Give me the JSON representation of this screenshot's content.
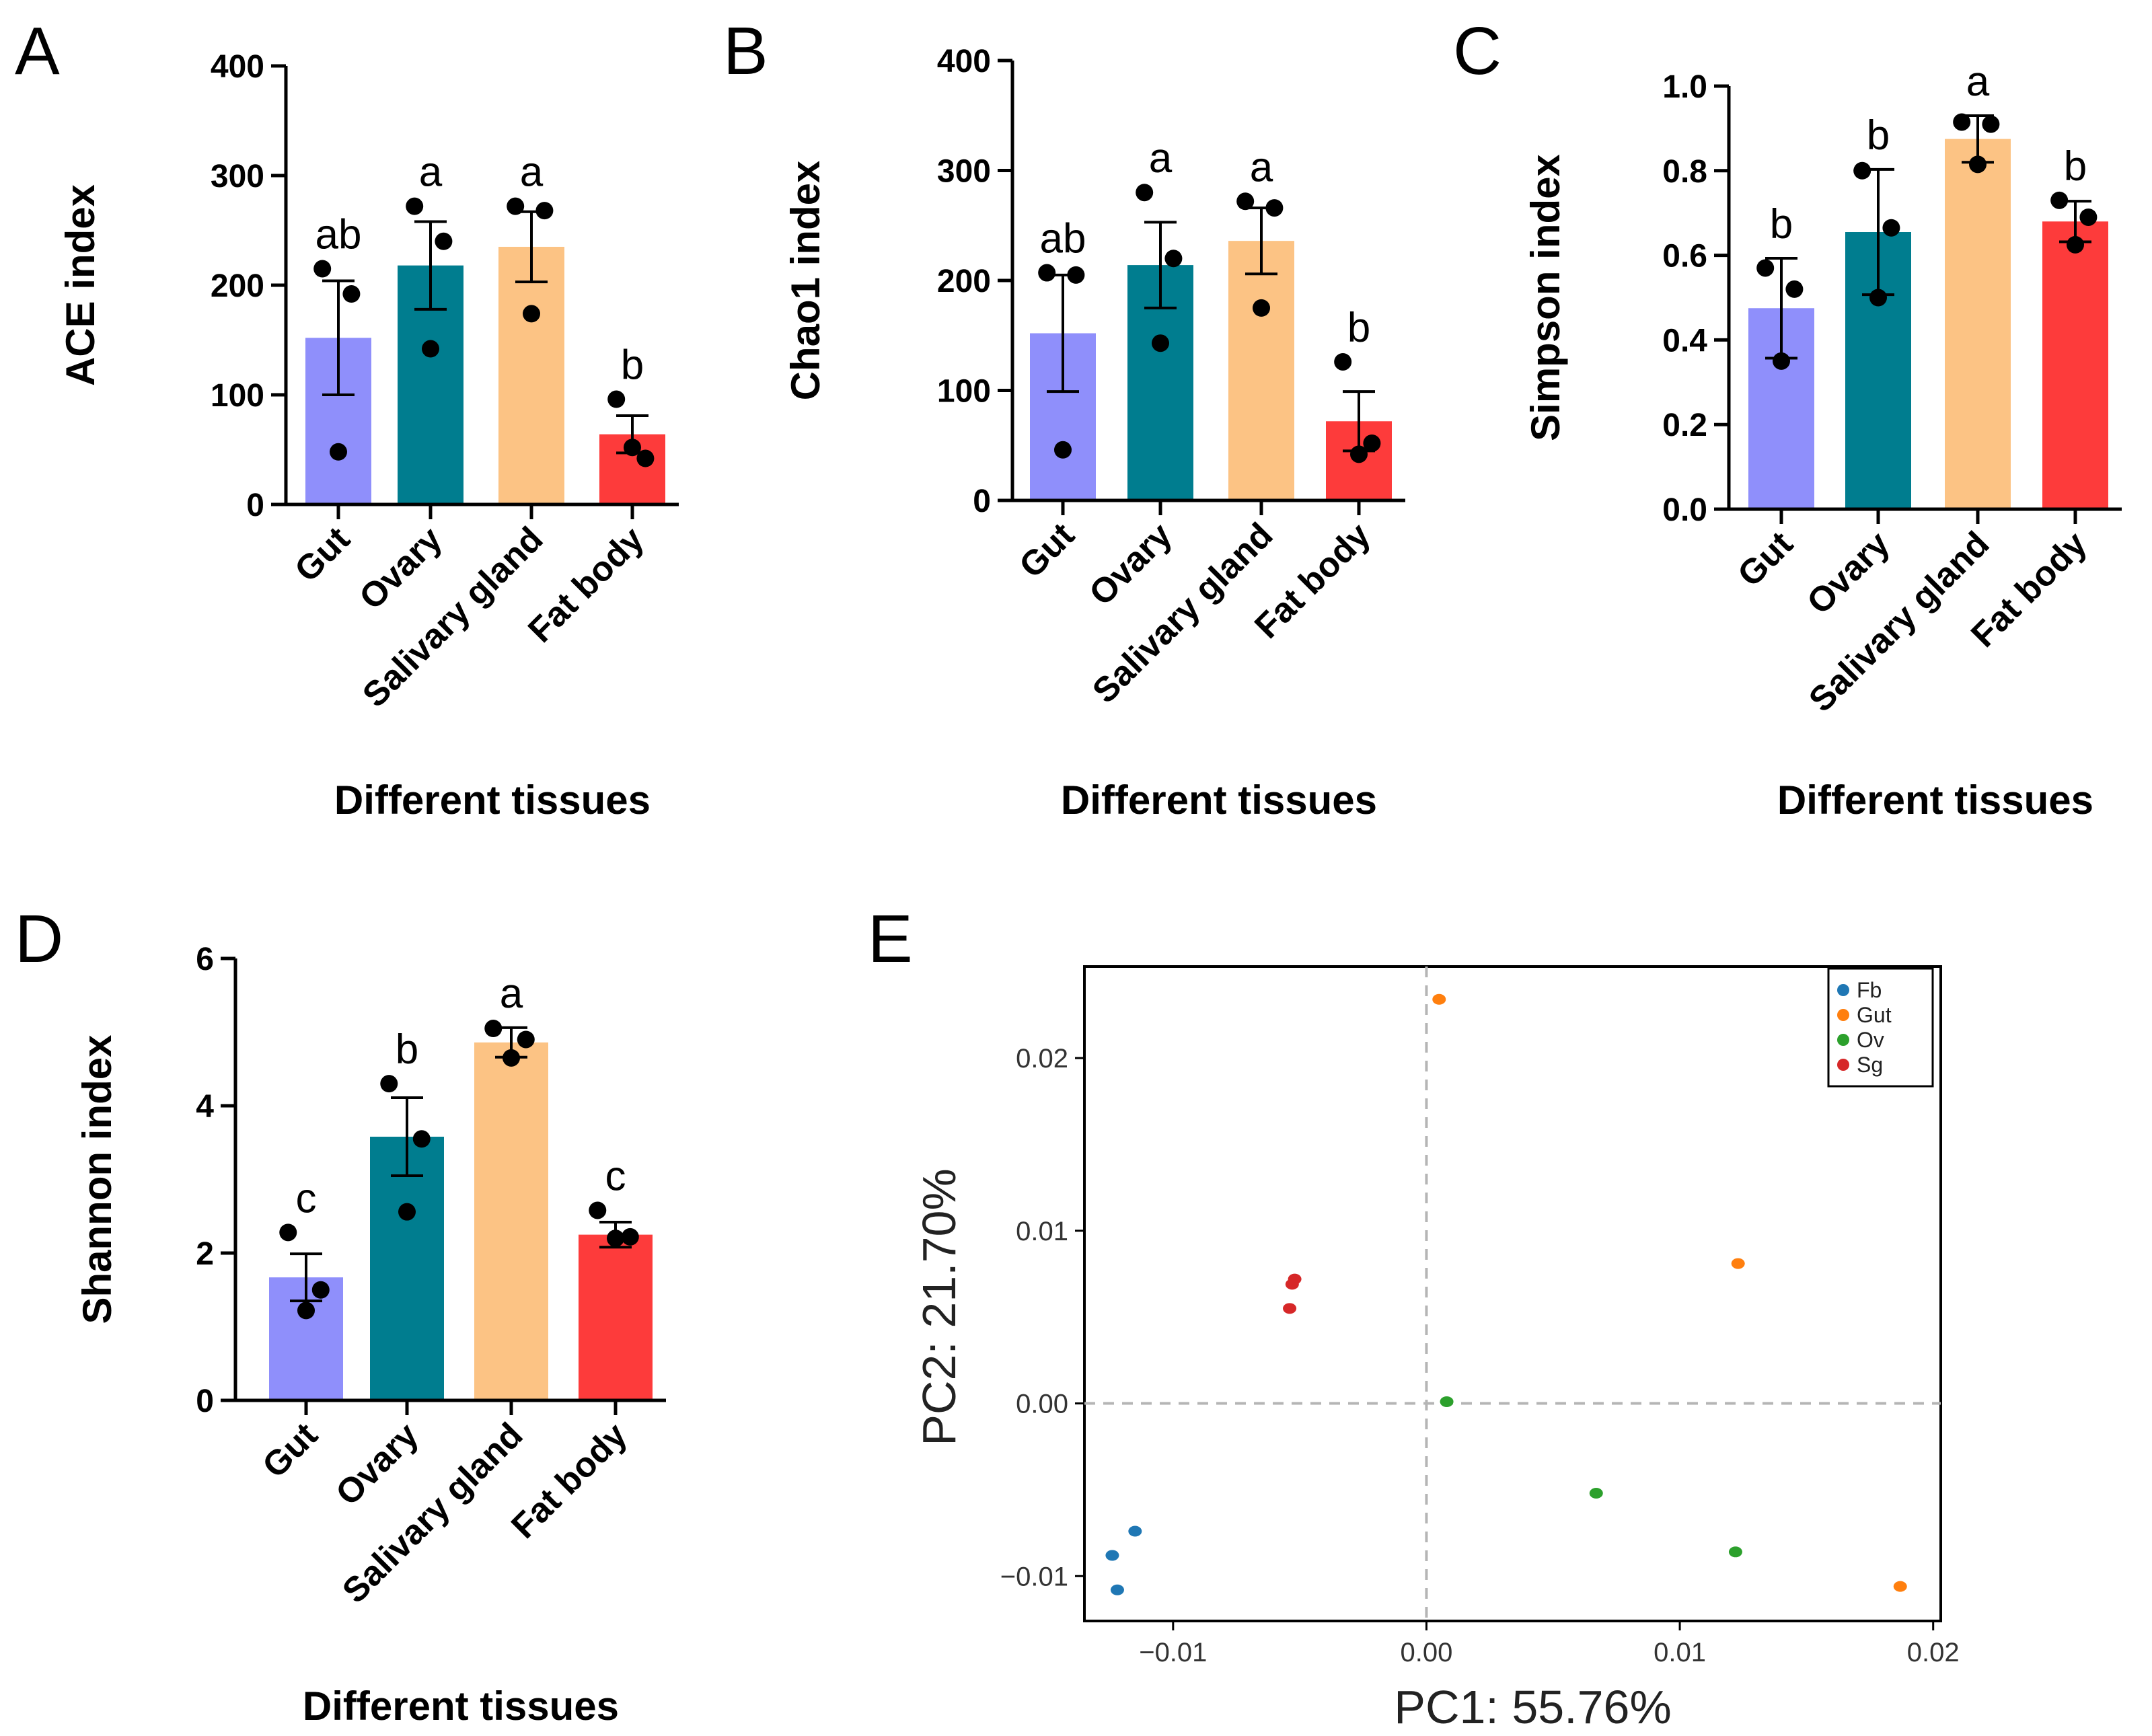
{
  "figure": {
    "panel_letters": [
      "A",
      "B",
      "C",
      "D",
      "E"
    ]
  },
  "colors": {
    "gut": "#8f8ffb",
    "ovary": "#007d8f",
    "salivary": "#fcc384",
    "fatbody": "#fd3b3b",
    "fb": "#1f77b4",
    "gut_pcoa": "#ff7f0e",
    "ov": "#2ca02c",
    "sg": "#d62728"
  },
  "chart_data": [
    {
      "panel": "A",
      "type": "bar",
      "title": "",
      "xlabel": "Different tissues",
      "ylabel": "ACE index",
      "categories": [
        "Gut",
        "Ovary",
        "Salivary gland",
        "Fat body"
      ],
      "values": [
        152,
        218,
        235,
        64
      ],
      "errors": [
        52,
        40,
        32,
        17
      ],
      "points": [
        [
          215,
          192,
          48
        ],
        [
          272,
          240,
          142
        ],
        [
          272,
          268,
          174
        ],
        [
          96,
          42,
          52
        ]
      ],
      "letters": [
        "ab",
        "a",
        "a",
        "b"
      ],
      "ylim": [
        0,
        400
      ],
      "yticks": [
        0,
        100,
        200,
        300,
        400
      ],
      "yticklabels": [
        "0",
        "100",
        "200",
        "300",
        "400"
      ]
    },
    {
      "panel": "B",
      "type": "bar",
      "title": "",
      "xlabel": "Different tissues",
      "ylabel": "Chao1 index",
      "categories": [
        "Gut",
        "Ovary",
        "Salivary gland",
        "Fat body"
      ],
      "values": [
        152,
        214,
        236,
        72
      ],
      "errors": [
        53,
        39,
        30,
        27
      ],
      "points": [
        [
          207,
          205,
          46
        ],
        [
          280,
          220,
          143
        ],
        [
          272,
          266,
          175
        ],
        [
          126,
          52,
          42
        ]
      ],
      "letters": [
        "ab",
        "a",
        "a",
        "b"
      ],
      "ylim": [
        0,
        400
      ],
      "yticks": [
        0,
        100,
        200,
        300,
        400
      ],
      "yticklabels": [
        "0",
        "100",
        "200",
        "300",
        "400"
      ]
    },
    {
      "panel": "C",
      "type": "bar",
      "title": "",
      "xlabel": "Different tissues",
      "ylabel": "Simpson index",
      "categories": [
        "Gut",
        "Ovary",
        "Salivary gland",
        "Fat body"
      ],
      "values": [
        0.475,
        0.655,
        0.875,
        0.68
      ],
      "errors": [
        0.118,
        0.148,
        0.055,
        0.048
      ],
      "points": [
        [
          0.57,
          0.52,
          0.35
        ],
        [
          0.8,
          0.665,
          0.5
        ],
        [
          0.915,
          0.91,
          0.815
        ],
        [
          0.73,
          0.69,
          0.625
        ]
      ],
      "letters": [
        "b",
        "b",
        "a",
        "b"
      ],
      "ylim": [
        0,
        1.0
      ],
      "yticks": [
        0,
        0.2,
        0.4,
        0.6,
        0.8,
        1.0
      ],
      "yticklabels": [
        "0.0",
        "0.2",
        "0.4",
        "0.6",
        "0.8",
        "1.0"
      ]
    },
    {
      "panel": "D",
      "type": "bar",
      "title": "",
      "xlabel": "Different tissues",
      "ylabel": "Shannon index",
      "categories": [
        "Gut",
        "Ovary",
        "Salivary gland",
        "Fat body"
      ],
      "values": [
        1.67,
        3.58,
        4.86,
        2.25
      ],
      "errors": [
        0.32,
        0.53,
        0.2,
        0.17
      ],
      "points": [
        [
          2.28,
          1.5,
          1.22
        ],
        [
          4.3,
          3.55,
          2.56
        ],
        [
          5.05,
          4.9,
          4.65
        ],
        [
          2.58,
          2.22,
          2.2
        ]
      ],
      "letters": [
        "c",
        "b",
        "a",
        "c"
      ],
      "ylim": [
        0,
        6
      ],
      "yticks": [
        0,
        2,
        4,
        6
      ],
      "yticklabels": [
        "0",
        "2",
        "4",
        "6"
      ]
    },
    {
      "panel": "E",
      "type": "scatter",
      "title": "",
      "xlabel": "PC1: 55.76%",
      "ylabel": "PC2: 21.70%",
      "xlim": [
        -0.0135,
        0.0203
      ],
      "ylim": [
        -0.0126,
        0.0253
      ],
      "xticks": [
        -0.01,
        0.0,
        0.01,
        0.02
      ],
      "xticklabels": [
        "−0.01",
        "0.00",
        "0.01",
        "0.02"
      ],
      "yticks": [
        -0.01,
        0.0,
        0.01,
        0.02
      ],
      "yticklabels": [
        "−0.01",
        "0.00",
        "0.01",
        "0.02"
      ],
      "legend_position": "top-right",
      "series": [
        {
          "name": "Fb",
          "color_key": "fb",
          "x": [
            -0.0115,
            -0.0124,
            -0.0122
          ],
          "y": [
            -0.0074,
            -0.0088,
            -0.0108
          ]
        },
        {
          "name": "Gut",
          "color_key": "gut_pcoa",
          "x": [
            0.0005,
            0.0123,
            0.0187
          ],
          "y": [
            0.0234,
            0.0081,
            -0.0106
          ]
        },
        {
          "name": "Ov",
          "color_key": "ov",
          "x": [
            0.0008,
            0.0067,
            0.0122
          ],
          "y": [
            0.0001,
            -0.0052,
            -0.0086
          ]
        },
        {
          "name": "Sg",
          "color_key": "sg",
          "x": [
            -0.0052,
            -0.0053,
            -0.0054
          ],
          "y": [
            0.0072,
            0.0069,
            0.0055
          ]
        }
      ]
    }
  ]
}
